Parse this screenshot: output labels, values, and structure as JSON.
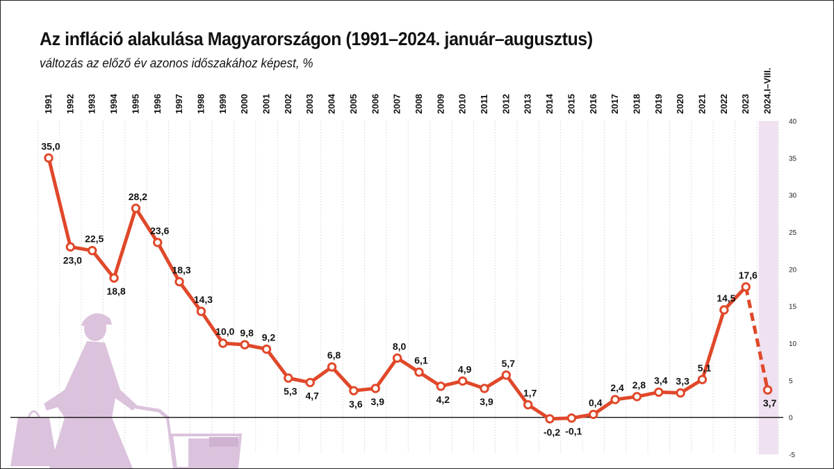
{
  "header": {
    "title": "Az infláció alakulása Magyarországon (1991–2024. január–augusztus)",
    "subtitle": "változás az előző év azonos időszakához képest, %"
  },
  "colors": {
    "line": "#e0482a",
    "marker_fill": "#ffffff",
    "highlight_band": "#efe1ef",
    "grid": "#c8c8c8",
    "zero_line": "#111111",
    "illustration": "#dcc3dd"
  },
  "illustration": {
    "description_icon": "woman-with-shopping-cart-silhouette"
  },
  "chart_data": {
    "type": "line",
    "title": "Az infláció alakulása Magyarországon (1991–2024. január–augusztus)",
    "subtitle": "változás az előző év azonos időszakához képest, %",
    "xlabel": "",
    "ylabel": "",
    "categories": [
      "1991",
      "1992",
      "1993",
      "1994",
      "1995",
      "1996",
      "1997",
      "1998",
      "1999",
      "2000",
      "2001",
      "2002",
      "2003",
      "2004",
      "2005",
      "2006",
      "2007",
      "2008",
      "2009",
      "2010",
      "2011",
      "2012",
      "2013",
      "2014",
      "2015",
      "2016",
      "2017",
      "2018",
      "2019",
      "2020",
      "2021",
      "2022",
      "2023",
      "2024.I–VIII."
    ],
    "series": [
      {
        "values": [
          35.0,
          23.0,
          22.5,
          18.8,
          28.2,
          23.6,
          18.3,
          14.3,
          10.0,
          9.8,
          9.2,
          5.3,
          4.7,
          6.8,
          3.6,
          3.9,
          8.0,
          6.1,
          4.2,
          4.9,
          3.9,
          5.7,
          1.7,
          -0.2,
          -0.1,
          0.4,
          2.4,
          2.8,
          3.4,
          3.3,
          5.1,
          14.5,
          17.6,
          3.7
        ],
        "value_labels": [
          "35,0",
          "23,0",
          "22,5",
          "18,8",
          "28,2",
          "23,6",
          "18,3",
          "14,3",
          "10,0",
          "9,8",
          "9,2",
          "5,3",
          "4,7",
          "6,8",
          "3,6",
          "3,9",
          "8,0",
          "6,1",
          "4,2",
          "4,9",
          "3,9",
          "5,7",
          "1,7",
          "-0,2",
          "-0,1",
          "0,4",
          "2,4",
          "2,8",
          "3,4",
          "3,3",
          "5,1",
          "14,5",
          "17,6",
          "3,7"
        ],
        "label_position": [
          "above",
          "below",
          "above",
          "below",
          "above",
          "above",
          "above",
          "above",
          "above",
          "above",
          "above",
          "below",
          "below",
          "above",
          "below",
          "below",
          "above",
          "above",
          "below",
          "above",
          "below",
          "above",
          "above",
          "below",
          "below",
          "above",
          "above",
          "above",
          "above",
          "above",
          "above",
          "above",
          "above",
          "below"
        ],
        "dashed_last_segment": true
      }
    ],
    "ylim": [
      -5,
      40
    ],
    "yticks": [
      -5,
      0,
      5,
      10,
      15,
      20,
      25,
      30,
      35,
      40
    ],
    "ytick_labels": [
      "-5",
      "0",
      "5",
      "10",
      "15",
      "20",
      "25",
      "30",
      "35",
      "40"
    ],
    "y_axis_side": "right",
    "highlighted_category": "2024.I–VIII.",
    "grid": "vertical-dotted",
    "legend": "none"
  }
}
